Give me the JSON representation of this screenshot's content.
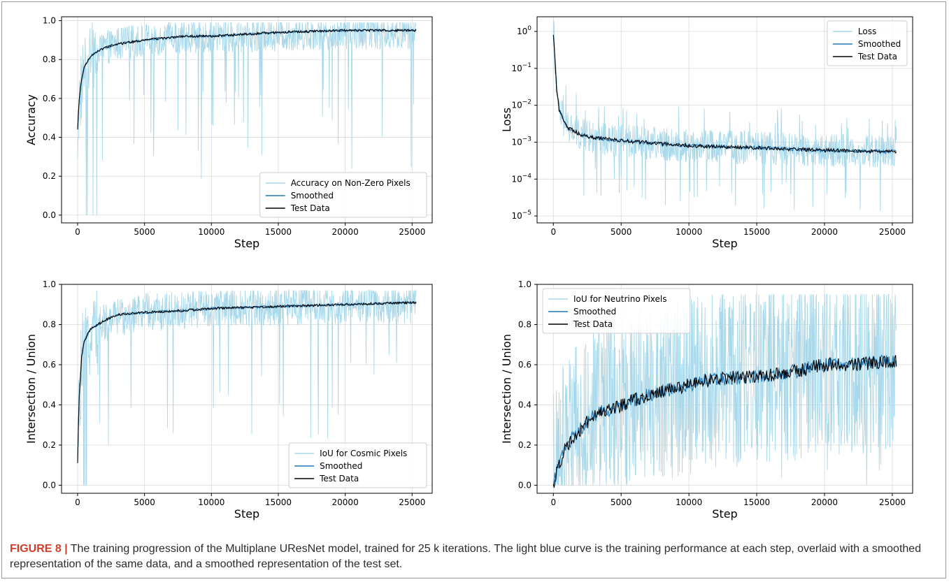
{
  "caption": {
    "label": "FIGURE 8",
    "separator": "|",
    "text": "The training progression of the Multiplane UResNet model, trained for 25 k iterations. The light blue curve is the training performance at each step, overlaid with a smoothed representation of the same data, and a smoothed representation of the test set."
  },
  "colors": {
    "raw": "#a8d8ea",
    "smoothed": "#1f77b4",
    "test": "#000000",
    "grid": "#d9d9d9",
    "axis": "#000000"
  },
  "chart_data": [
    {
      "type": "line",
      "ylabel": "Accuracy",
      "xlabel": "Step",
      "xlim": [
        -1200,
        26500
      ],
      "ylim": [
        -0.04,
        1.02
      ],
      "xticks": [
        0,
        5000,
        10000,
        15000,
        20000,
        25000
      ],
      "xtick_labels": [
        "0",
        "5000",
        "10000",
        "15000",
        "20000",
        "25000"
      ],
      "yticks": [
        0.0,
        0.2,
        0.4,
        0.6,
        0.8,
        1.0
      ],
      "ytick_labels": [
        "0.0",
        "0.2",
        "0.4",
        "0.6",
        "0.8",
        "1.0"
      ],
      "log_y": false,
      "grid": true,
      "legend_position": "lower-right",
      "x_end": 25300,
      "series": [
        {
          "name": "Accuracy on Non-Zero Pixels",
          "role": "raw",
          "noise": 0.11,
          "floor": 0.0,
          "ceil": 0.99,
          "x": [
            0,
            100,
            300,
            500,
            1000,
            2000,
            3000,
            5000,
            8000,
            10000,
            15000,
            20000,
            25300
          ],
          "y": [
            0.4,
            0.55,
            0.68,
            0.75,
            0.81,
            0.86,
            0.88,
            0.9,
            0.92,
            0.92,
            0.93,
            0.94,
            0.94
          ]
        },
        {
          "name": "Smoothed",
          "role": "smoothed",
          "x": [
            0,
            100,
            300,
            500,
            1000,
            2000,
            3000,
            5000,
            8000,
            10000,
            15000,
            20000,
            25300
          ],
          "y": [
            0.44,
            0.58,
            0.7,
            0.76,
            0.82,
            0.86,
            0.88,
            0.9,
            0.92,
            0.92,
            0.94,
            0.95,
            0.95
          ]
        },
        {
          "name": "Test Data",
          "role": "test",
          "x": [
            0,
            100,
            300,
            500,
            1000,
            2000,
            3000,
            5000,
            8000,
            10000,
            15000,
            20000,
            25300
          ],
          "y": [
            0.44,
            0.58,
            0.7,
            0.76,
            0.82,
            0.86,
            0.88,
            0.9,
            0.92,
            0.92,
            0.94,
            0.95,
            0.95
          ]
        }
      ]
    },
    {
      "type": "line",
      "ylabel": "Loss",
      "xlabel": "Step",
      "xlim": [
        -1200,
        26500
      ],
      "ylim": [
        6.5e-06,
        2.5
      ],
      "xticks": [
        0,
        5000,
        10000,
        15000,
        20000,
        25000
      ],
      "xtick_labels": [
        "0",
        "5000",
        "10000",
        "15000",
        "20000",
        "25000"
      ],
      "yticks": [
        1e-05,
        0.0001,
        0.001,
        0.01,
        0.1,
        1
      ],
      "ytick_base": [
        "10",
        "10",
        "10",
        "10",
        "10",
        "10"
      ],
      "ytick_exp": [
        "−5",
        "−4",
        "−3",
        "−2",
        "−1",
        "0"
      ],
      "log_y": true,
      "grid": true,
      "legend_position": "upper-right",
      "x_end": 25300,
      "series": [
        {
          "name": "Loss",
          "role": "raw",
          "noise": 0.45,
          "floor": 1e-05,
          "ceil": 2.0,
          "x": [
            0,
            100,
            200,
            400,
            700,
            1000,
            2000,
            3000,
            5000,
            8000,
            10000,
            15000,
            20000,
            25300
          ],
          "y": [
            1.5,
            0.2,
            0.03,
            0.008,
            0.004,
            0.0025,
            0.0016,
            0.0013,
            0.0011,
            0.0009,
            0.0008,
            0.0007,
            0.0006,
            0.00055
          ]
        },
        {
          "name": "Smoothed",
          "role": "smoothed",
          "x": [
            0,
            100,
            200,
            400,
            700,
            1000,
            2000,
            3000,
            5000,
            8000,
            10000,
            15000,
            20000,
            25300
          ],
          "y": [
            0.8,
            0.2,
            0.03,
            0.008,
            0.004,
            0.0025,
            0.0016,
            0.0013,
            0.0011,
            0.0009,
            0.0008,
            0.0007,
            0.0006,
            0.00055
          ]
        },
        {
          "name": "Test Data",
          "role": "test",
          "x": [
            0,
            100,
            200,
            400,
            700,
            1000,
            2000,
            3000,
            5000,
            8000,
            10000,
            15000,
            20000,
            25300
          ],
          "y": [
            0.8,
            0.2,
            0.03,
            0.008,
            0.004,
            0.0025,
            0.0016,
            0.0013,
            0.0011,
            0.0009,
            0.0008,
            0.0007,
            0.0006,
            0.00055
          ]
        }
      ]
    },
    {
      "type": "line",
      "ylabel": "Intersection / Union",
      "xlabel": "Step",
      "xlim": [
        -1200,
        26500
      ],
      "ylim": [
        -0.04,
        1.0
      ],
      "xticks": [
        0,
        5000,
        10000,
        15000,
        20000,
        25000
      ],
      "xtick_labels": [
        "0",
        "5000",
        "10000",
        "15000",
        "20000",
        "25000"
      ],
      "yticks": [
        0.0,
        0.2,
        0.4,
        0.6,
        0.8,
        1.0
      ],
      "ytick_labels": [
        "0.0",
        "0.2",
        "0.4",
        "0.6",
        "0.8",
        "1.0"
      ],
      "log_y": false,
      "grid": true,
      "legend_position": "lower-right",
      "x_end": 25300,
      "series": [
        {
          "name": "IoU for Cosmic Pixels",
          "role": "raw",
          "noise": 0.12,
          "floor": 0.0,
          "ceil": 0.97,
          "x": [
            0,
            100,
            300,
            500,
            1000,
            2000,
            3000,
            5000,
            8000,
            10000,
            15000,
            20000,
            25300
          ],
          "y": [
            0.08,
            0.4,
            0.62,
            0.7,
            0.76,
            0.81,
            0.84,
            0.86,
            0.87,
            0.88,
            0.89,
            0.9,
            0.9
          ]
        },
        {
          "name": "Smoothed",
          "role": "smoothed",
          "x": [
            0,
            100,
            300,
            500,
            1000,
            2000,
            3000,
            5000,
            8000,
            10000,
            15000,
            20000,
            25300
          ],
          "y": [
            0.11,
            0.42,
            0.64,
            0.72,
            0.78,
            0.82,
            0.85,
            0.86,
            0.87,
            0.88,
            0.89,
            0.9,
            0.91
          ]
        },
        {
          "name": "Test Data",
          "role": "test",
          "x": [
            0,
            100,
            300,
            500,
            1000,
            2000,
            3000,
            5000,
            8000,
            10000,
            15000,
            20000,
            25300
          ],
          "y": [
            0.11,
            0.42,
            0.64,
            0.72,
            0.78,
            0.82,
            0.85,
            0.86,
            0.87,
            0.88,
            0.89,
            0.9,
            0.91
          ]
        }
      ]
    },
    {
      "type": "line",
      "ylabel": "Intersection / Union",
      "xlabel": "Step",
      "xlim": [
        -1200,
        26500
      ],
      "ylim": [
        -0.04,
        1.0
      ],
      "xticks": [
        0,
        5000,
        10000,
        15000,
        20000,
        25000
      ],
      "xtick_labels": [
        "0",
        "5000",
        "10000",
        "15000",
        "20000",
        "25000"
      ],
      "yticks": [
        0.0,
        0.2,
        0.4,
        0.6,
        0.8,
        1.0
      ],
      "ytick_labels": [
        "0.0",
        "0.2",
        "0.4",
        "0.6",
        "0.8",
        "1.0"
      ],
      "log_y": false,
      "grid": true,
      "legend_position": "upper-left",
      "x_end": 25300,
      "series": [
        {
          "name": "IoU for Neutrino Pixels",
          "role": "raw",
          "noise": 0.45,
          "floor": 0.0,
          "ceil": 0.95,
          "x": [
            0,
            300,
            700,
            1000,
            2000,
            3000,
            5000,
            7000,
            10000,
            12000,
            15000,
            18000,
            20000,
            22000,
            25300
          ],
          "y": [
            0.0,
            0.08,
            0.15,
            0.2,
            0.28,
            0.35,
            0.4,
            0.45,
            0.5,
            0.53,
            0.54,
            0.57,
            0.6,
            0.6,
            0.62
          ]
        },
        {
          "name": "Smoothed",
          "role": "smoothed",
          "x": [
            0,
            300,
            700,
            1000,
            2000,
            3000,
            5000,
            7000,
            10000,
            12000,
            15000,
            18000,
            20000,
            22000,
            25300
          ],
          "y": [
            0.0,
            0.08,
            0.15,
            0.2,
            0.28,
            0.35,
            0.4,
            0.45,
            0.5,
            0.53,
            0.54,
            0.57,
            0.6,
            0.6,
            0.62
          ]
        },
        {
          "name": "Test Data",
          "role": "test",
          "x": [
            0,
            300,
            700,
            1000,
            2000,
            3000,
            5000,
            7000,
            10000,
            12000,
            15000,
            18000,
            20000,
            22000,
            25300
          ],
          "y": [
            0.0,
            0.08,
            0.15,
            0.2,
            0.28,
            0.35,
            0.4,
            0.45,
            0.5,
            0.53,
            0.54,
            0.57,
            0.6,
            0.6,
            0.62
          ]
        }
      ]
    }
  ]
}
